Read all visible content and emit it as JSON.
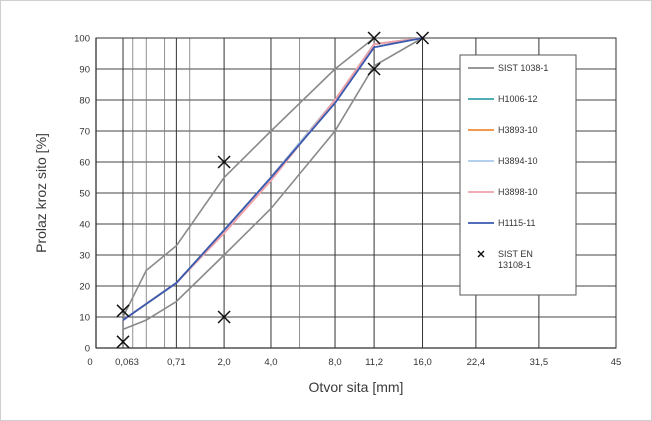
{
  "chart_data": {
    "type": "line",
    "xlabel": "Otvor sita [mm]",
    "ylabel": "Prolaz kroz sito [%]",
    "x_ticks": [
      "0",
      "0,063",
      "0,71",
      "2,0",
      "4,0",
      "8,0",
      "11,2",
      "16,0",
      "22,4",
      "31,5",
      "45"
    ],
    "y_ticks": [
      "0",
      "10",
      "20",
      "30",
      "40",
      "50",
      "60",
      "70",
      "80",
      "90",
      "100"
    ],
    "ylim": [
      0,
      100
    ],
    "grid": true,
    "legend_position": "right",
    "envelope": {
      "name": "SIST 1038-1",
      "color": "#8a8a8a",
      "upper": [
        [
          0.063,
          10
        ],
        [
          0.25,
          25
        ],
        [
          0.71,
          33
        ],
        [
          2.0,
          55
        ],
        [
          4.0,
          70
        ],
        [
          8.0,
          90
        ],
        [
          11.2,
          100
        ],
        [
          16.0,
          100
        ]
      ],
      "lower": [
        [
          0.063,
          6
        ],
        [
          0.25,
          9
        ],
        [
          0.71,
          15
        ],
        [
          2.0,
          30
        ],
        [
          4.0,
          45
        ],
        [
          8.0,
          70
        ],
        [
          11.2,
          91
        ],
        [
          16.0,
          100
        ]
      ]
    },
    "series": [
      {
        "name": "H1006-12",
        "color": "#3aa0a8",
        "x": [
          0.063,
          0.71,
          2.0,
          4.0,
          8.0,
          11.2,
          16.0
        ],
        "y": [
          9,
          21,
          38,
          55,
          80,
          98,
          100
        ]
      },
      {
        "name": "H3893-10",
        "color": "#f08c3a",
        "x": [
          0.063,
          0.71,
          2.0,
          4.0,
          8.0,
          11.2,
          16.0
        ],
        "y": [
          9,
          21,
          38,
          55,
          80,
          98,
          100
        ]
      },
      {
        "name": "H3894-10",
        "color": "#a8c8e8",
        "x": [
          0.063,
          0.71,
          2.0,
          4.0,
          8.0,
          11.2,
          16.0
        ],
        "y": [
          9,
          21,
          38,
          55,
          80,
          98,
          100
        ]
      },
      {
        "name": "H3898-10",
        "color": "#f0a0a8",
        "x": [
          0.063,
          0.71,
          2.0,
          4.0,
          8.0,
          11.2,
          16.0
        ],
        "y": [
          9,
          21,
          37,
          54,
          80,
          98,
          100
        ]
      },
      {
        "name": "H1115-11",
        "color": "#3a5ab0",
        "x": [
          0.063,
          0.71,
          2.0,
          4.0,
          8.0,
          11.2,
          16.0
        ],
        "y": [
          9,
          21,
          38,
          55,
          79,
          97,
          100
        ]
      }
    ],
    "markers": {
      "name": "SIST EN 13108-1",
      "symbol": "×",
      "points": [
        [
          0.063,
          12
        ],
        [
          0.063,
          2
        ],
        [
          2.0,
          60
        ],
        [
          2.0,
          10
        ],
        [
          11.2,
          100
        ],
        [
          11.2,
          90
        ],
        [
          16.0,
          100
        ]
      ]
    }
  }
}
